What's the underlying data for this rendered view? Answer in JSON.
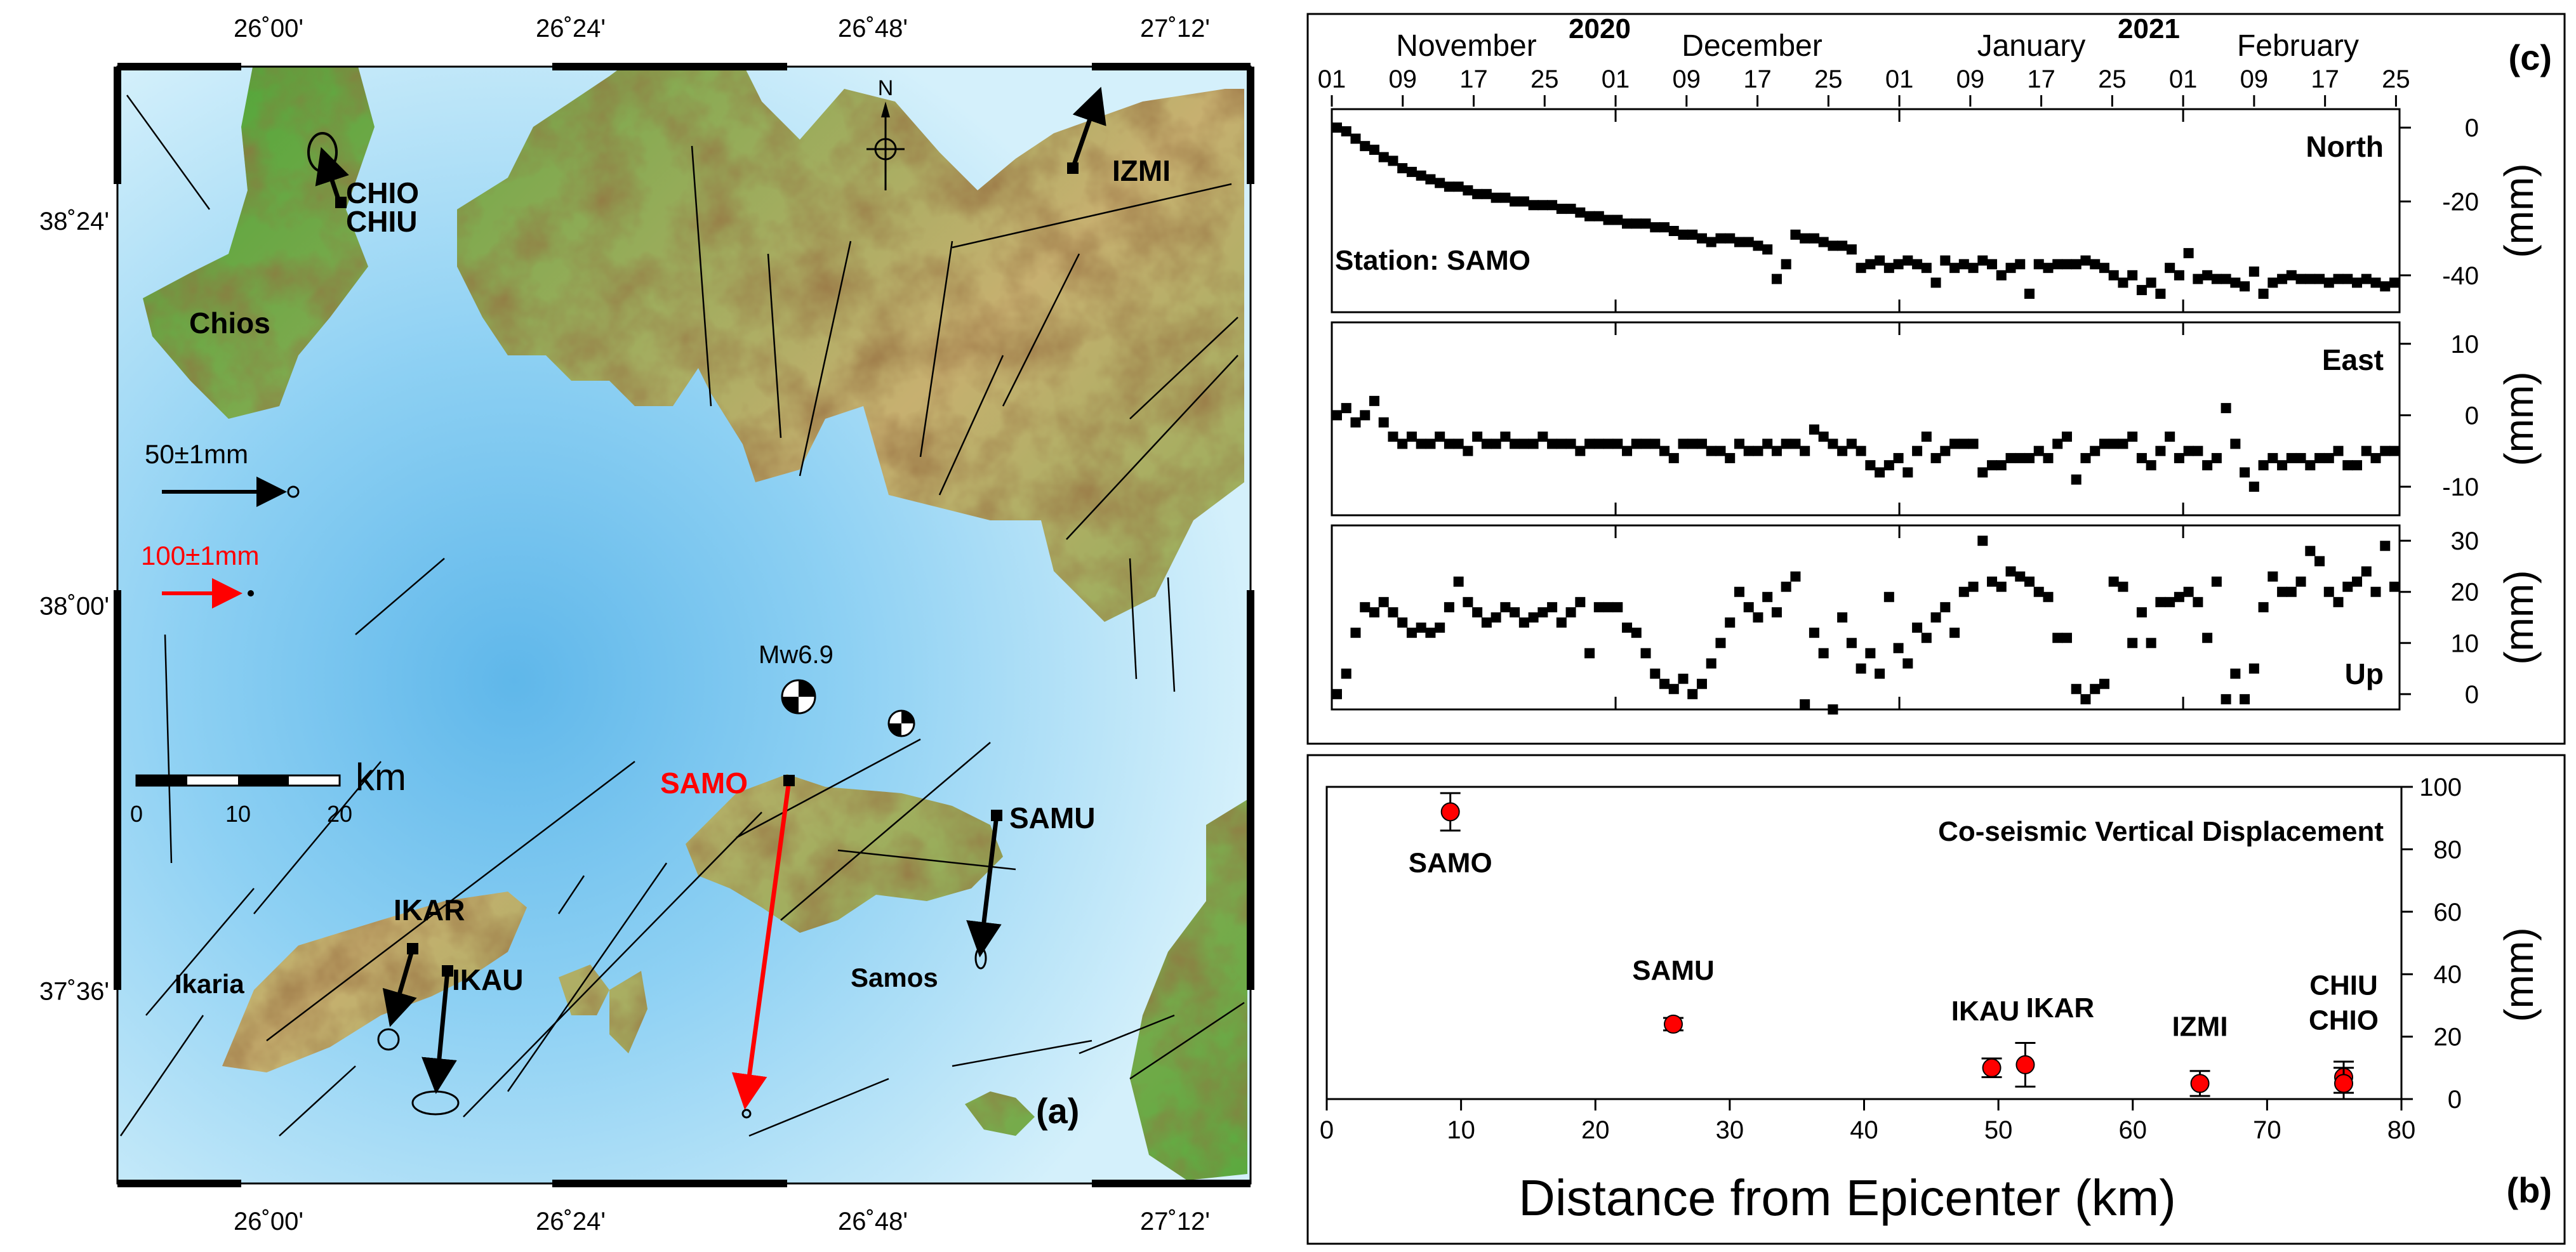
{
  "map": {
    "panel_label": "(a)",
    "lon_ticks": [
      {
        "lon": 26.0,
        "label": "26˚00'"
      },
      {
        "lon": 26.4,
        "label": "26˚24'"
      },
      {
        "lon": 26.8,
        "label": "26˚48'"
      },
      {
        "lon": 27.2,
        "label": "27˚12'"
      }
    ],
    "lat_ticks": [
      {
        "lat": 38.4,
        "label": "38˚24'"
      },
      {
        "lat": 38.0,
        "label": "38˚00'"
      },
      {
        "lat": 37.6,
        "label": "37˚36'"
      }
    ],
    "north_label": "N",
    "scale_bar": {
      "unit": "km",
      "ticks": [
        "0",
        "10",
        "20"
      ]
    },
    "reference_vectors": [
      {
        "label": "50±1mm",
        "color": "#000000"
      },
      {
        "label": "100±1mm",
        "color": "#ff0000"
      }
    ],
    "islands": [
      "Chios",
      "Ikaria",
      "Samos"
    ],
    "event_label": "Mw6.9",
    "stations": [
      {
        "name": "CHIO",
        "color": "#000000"
      },
      {
        "name": "CHIU",
        "color": "#000000"
      },
      {
        "name": "IZMI",
        "color": "#000000"
      },
      {
        "name": "SAMO",
        "color": "#ff0000"
      },
      {
        "name": "SAMU",
        "color": "#000000"
      },
      {
        "name": "IKAR",
        "color": "#000000"
      },
      {
        "name": "IKAU",
        "color": "#000000"
      }
    ],
    "colors": {
      "sea_deep": "#5fb7ea",
      "sea_shallow": "#d4f0fb",
      "land_low": "#3c9a2e",
      "land_mid": "#d8b86c",
      "land_high": "#ad6b3a",
      "vector_red": "#ff0000"
    }
  },
  "timeseries": {
    "panel_label": "(c)",
    "years": [
      "2020",
      "2021"
    ],
    "months": [
      "November",
      "December",
      "January",
      "February"
    ],
    "day_ticks": [
      "01",
      "09",
      "17",
      "25",
      "01",
      "09",
      "17",
      "25",
      "01",
      "09",
      "17",
      "25",
      "01",
      "09",
      "17",
      "25"
    ],
    "station_label": "Station: SAMO",
    "ylabel": "(mm)",
    "chart_data": [
      {
        "type": "scatter",
        "name": "North",
        "ylim": [
          -50,
          5
        ],
        "yticks": [
          "0",
          "-20",
          "-40"
        ],
        "values": [
          0,
          -1,
          -3,
          -5,
          -6,
          -8,
          -9,
          -11,
          -12,
          -13,
          -14,
          -15,
          -16,
          -16,
          -17,
          -18,
          -18,
          -19,
          -19,
          -20,
          -20,
          -21,
          -21,
          -21,
          -22,
          -22,
          -23,
          -24,
          -24,
          -25,
          -25,
          -26,
          -26,
          -26,
          -27,
          -27,
          -28,
          -29,
          -29,
          -30,
          -31,
          -30,
          -30,
          -31,
          -31,
          -32,
          -33,
          -41,
          -37,
          -29,
          -30,
          -30,
          -31,
          -32,
          -32,
          -33,
          -38,
          -37,
          -36,
          -38,
          -37,
          -36,
          -37,
          -38,
          -42,
          -36,
          -38,
          -37,
          -38,
          -36,
          -37,
          -40,
          -38,
          -37,
          -45,
          -37,
          -38,
          -37,
          -37,
          -37,
          -36,
          -37,
          -38,
          -40,
          -42,
          -40,
          -44,
          -42,
          -45,
          -38,
          -40,
          -34,
          -41,
          -40,
          -41,
          -41,
          -42,
          -43,
          -39,
          -45,
          -42,
          -41,
          -40,
          -41,
          -41,
          -41,
          -42,
          -41,
          -41,
          -42,
          -41,
          -42,
          -43,
          -42
        ]
      },
      {
        "type": "scatter",
        "name": "East",
        "ylim": [
          -14,
          13
        ],
        "yticks": [
          "10",
          "0",
          "-10"
        ],
        "values": [
          0,
          1,
          -1,
          0,
          2,
          -1,
          -3,
          -4,
          -3,
          -4,
          -4,
          -3,
          -4,
          -4,
          -5,
          -3,
          -4,
          -4,
          -3,
          -4,
          -4,
          -4,
          -3,
          -4,
          -4,
          -4,
          -5,
          -4,
          -4,
          -4,
          -4,
          -5,
          -4,
          -4,
          -4,
          -5,
          -6,
          -4,
          -4,
          -4,
          -5,
          -5,
          -6,
          -4,
          -5,
          -5,
          -4,
          -5,
          -4,
          -4,
          -5,
          -2,
          -3,
          -4,
          -5,
          -4,
          -5,
          -7,
          -8,
          -7,
          -6,
          -8,
          -5,
          -3,
          -6,
          -5,
          -4,
          -4,
          -4,
          -8,
          -7,
          -7,
          -6,
          -6,
          -6,
          -5,
          -6,
          -4,
          -3,
          -9,
          -6,
          -5,
          -4,
          -4,
          -4,
          -3,
          -6,
          -7,
          -5,
          -3,
          -6,
          -5,
          -5,
          -7,
          -6,
          1,
          -4,
          -8,
          -10,
          -7,
          -6,
          -7,
          -6,
          -6,
          -7,
          -6,
          -6,
          -5,
          -7,
          -7,
          -5,
          -6,
          -5,
          -5
        ]
      },
      {
        "type": "scatter",
        "name": "Up",
        "ylim": [
          -3,
          33
        ],
        "yticks": [
          "30",
          "20",
          "10",
          "0"
        ],
        "values": [
          0,
          4,
          12,
          17,
          16,
          18,
          16,
          14,
          12,
          13,
          12,
          13,
          17,
          22,
          18,
          16,
          14,
          15,
          17,
          16,
          14,
          15,
          16,
          17,
          14,
          16,
          18,
          8,
          17,
          17,
          17,
          13,
          12,
          8,
          4,
          2,
          1,
          3,
          0,
          2,
          6,
          10,
          14,
          20,
          17,
          15,
          19,
          16,
          21,
          23,
          -2,
          12,
          8,
          -3,
          15,
          10,
          5,
          8,
          4,
          19,
          9,
          6,
          13,
          11,
          15,
          17,
          12,
          20,
          21,
          30,
          22,
          21,
          24,
          23,
          22,
          20,
          19,
          11,
          11,
          1,
          -1,
          1,
          2,
          22,
          21,
          10,
          16,
          10,
          18,
          18,
          19,
          20,
          18,
          11,
          22,
          -1,
          4,
          -1,
          5,
          17,
          23,
          20,
          20,
          22,
          28,
          26,
          20,
          18,
          21,
          22,
          24,
          20,
          29,
          21
        ]
      }
    ]
  },
  "vertical": {
    "panel_label": "(b)",
    "chart_data": {
      "type": "scatter",
      "title": "Co-seismic Vertical Displacement",
      "xlabel": "Distance from Epicenter (km)",
      "ylabel": "(mm)",
      "xlim": [
        0,
        80
      ],
      "ylim": [
        0,
        100
      ],
      "xticks": [
        "0",
        "10",
        "20",
        "30",
        "40",
        "50",
        "60",
        "70",
        "80"
      ],
      "yticks": [
        "0",
        "20",
        "40",
        "60",
        "80",
        "100"
      ],
      "points": [
        {
          "label": "SAMO",
          "x": 9.2,
          "y": 92,
          "err": 6
        },
        {
          "label": "SAMU",
          "x": 25.8,
          "y": 24,
          "err": 2
        },
        {
          "label": "IKAU",
          "x": 49.5,
          "y": 10,
          "err": 3
        },
        {
          "label": "IKAR",
          "x": 52,
          "y": 11,
          "err": 7
        },
        {
          "label": "IZMI",
          "x": 65,
          "y": 5,
          "err": 4
        },
        {
          "label": "CHIU",
          "x": 75.7,
          "y": 7,
          "err": 5
        },
        {
          "label": "CHIO",
          "x": 75.7,
          "y": 5,
          "err": 5
        }
      ],
      "marker_color": "#ff0000"
    }
  }
}
